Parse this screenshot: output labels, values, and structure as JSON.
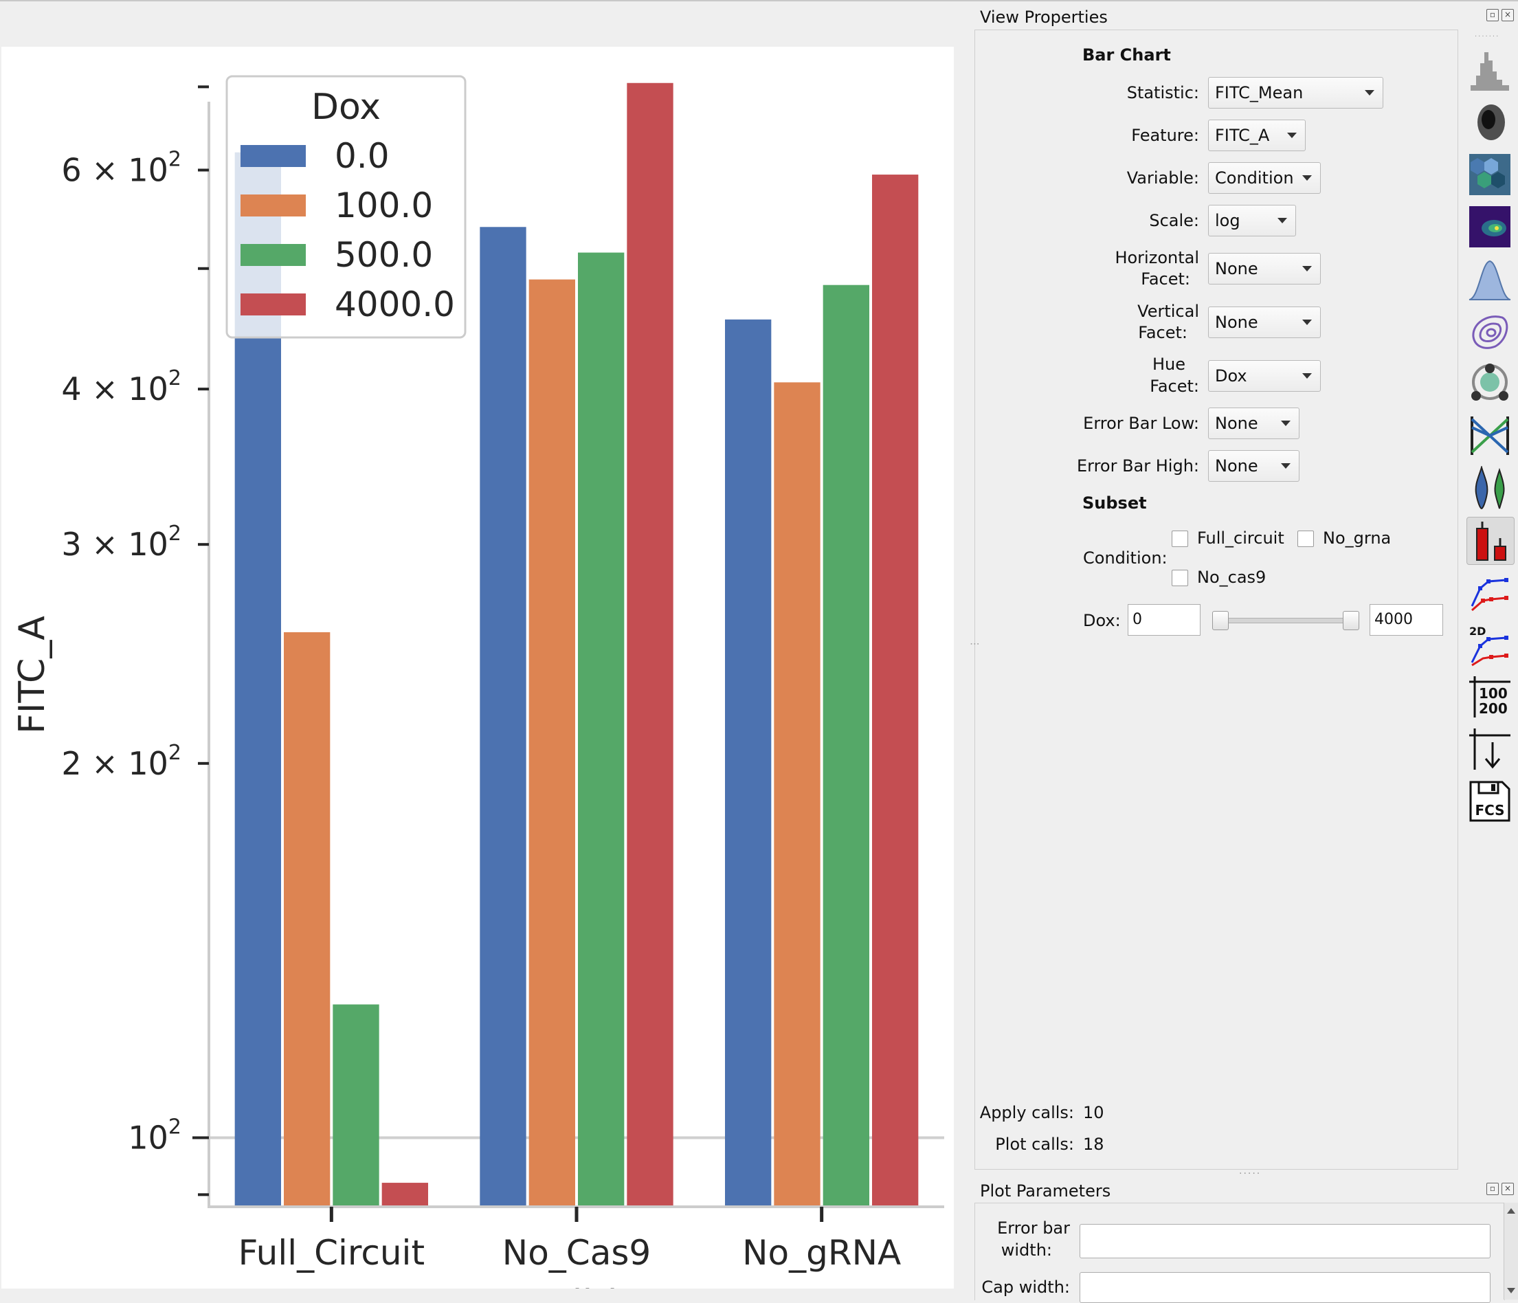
{
  "chart_data": {
    "type": "bar",
    "xlabel": "Condition",
    "ylabel": "FITC_A",
    "yscale": "log",
    "ylim": [
      88,
      735
    ],
    "categories": [
      "Full_Circuit",
      "No_Cas9",
      "No_gRNA"
    ],
    "legend": {
      "title": "Dox",
      "position": "top-left"
    },
    "series": [
      {
        "name": "0.0",
        "color": "#4c72b0",
        "values": [
          620,
          540,
          455
        ]
      },
      {
        "name": "100.0",
        "color": "#dd8452",
        "values": [
          255,
          490,
          405
        ]
      },
      {
        "name": "500.0",
        "color": "#55a868",
        "values": [
          128,
          515,
          485
        ]
      },
      {
        "name": "4000.0",
        "color": "#c44e52",
        "values": [
          92,
          705,
          595
        ]
      }
    ],
    "yticks": [
      {
        "value": 100,
        "label": "10",
        "exp": "2",
        "major": true
      },
      {
        "value": 200,
        "label": "2 × 10",
        "exp": "2",
        "major": false
      },
      {
        "value": 300,
        "label": "3 × 10",
        "exp": "2",
        "major": false
      },
      {
        "value": 400,
        "label": "4 × 10",
        "exp": "2",
        "major": false
      },
      {
        "value": 500,
        "label": "",
        "exp": "",
        "major": false
      },
      {
        "value": 600,
        "label": "6 × 10",
        "exp": "2",
        "major": false
      },
      {
        "value": 700,
        "label": "",
        "exp": "",
        "major": false
      },
      {
        "value": 90,
        "label": "",
        "exp": "",
        "major": false
      }
    ],
    "grid": "major-y"
  },
  "view_properties": {
    "title": "View Properties",
    "section": "Bar Chart",
    "statistic": {
      "label": "Statistic:",
      "value": "FITC_Mean"
    },
    "feature": {
      "label": "Feature:",
      "value": "FITC_A"
    },
    "variable": {
      "label": "Variable:",
      "value": "Condition"
    },
    "scale": {
      "label": "Scale:",
      "value": "log"
    },
    "horizontal_facet": {
      "label1": "Horizontal",
      "label2": "Facet:",
      "value": "None"
    },
    "vertical_facet": {
      "label1": "Vertical",
      "label2": "Facet:",
      "value": "None"
    },
    "hue_facet": {
      "label1": "Hue",
      "label2": "Facet:",
      "value": "Dox"
    },
    "error_bar_low": {
      "label": "Error Bar Low:",
      "value": "None"
    },
    "error_bar_high": {
      "label": "Error Bar High:",
      "value": "None"
    },
    "subset": {
      "title": "Subset",
      "condition_label": "Condition:",
      "options": [
        "Full_circuit",
        "No_grna",
        "No_cas9"
      ],
      "dox_label": "Dox:",
      "dox_min": "0",
      "dox_max": "4000"
    },
    "apply_calls": {
      "label": "Apply calls:",
      "value": "10"
    },
    "plot_calls": {
      "label": "Plot calls:",
      "value": "18"
    }
  },
  "plot_parameters": {
    "title": "Plot Parameters",
    "error_bar_width": {
      "label1": "Error bar",
      "label2": "width:"
    },
    "cap_width": {
      "label": "Cap width:"
    }
  },
  "toolbar": {
    "icons": [
      "histogram-icon",
      "scatterplot-icon",
      "hexbin-icon",
      "density-2d-icon",
      "kde-icon",
      "contour-icon",
      "cluster-plot-icon",
      "parallel-coordinates-icon",
      "violin-icon",
      "bar-chart-icon",
      "stats-1d-icon",
      "stats-2d-icon",
      "table-view-icon",
      "threshold-icon",
      "export-fcs-icon"
    ],
    "table_text": [
      "100",
      "200"
    ],
    "stats2d_text": "2D",
    "fcs_text": "FCS",
    "active": "bar-chart-icon"
  }
}
